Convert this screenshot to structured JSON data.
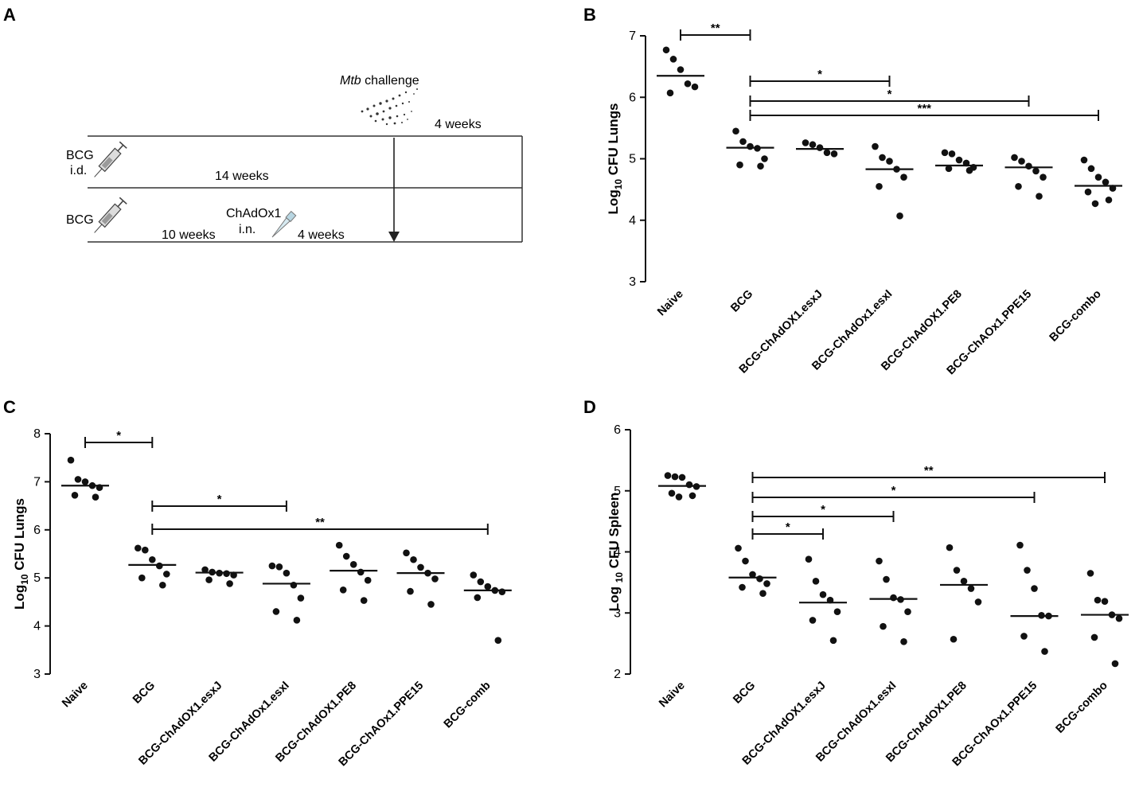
{
  "panel_letters": [
    "A",
    "B",
    "C",
    "D"
  ],
  "schematic": {
    "challenge_italic": "Mtb",
    "challenge_text": " challenge",
    "row1_vaccine": "BCG",
    "row1_route": "i.d.",
    "row1_duration": "14 weeks",
    "row2_vaccine": "BCG",
    "row2_duration": "10 weeks",
    "boost_name": "ChAdOx1",
    "boost_route": "i.n.",
    "boost_duration": "4 weeks",
    "post_challenge": "4 weeks"
  },
  "chart_data": [
    {
      "panel": "B",
      "type": "scatter",
      "ylabel_prefix": "Log",
      "ylabel_sub": "10",
      "ylabel_suffix": " CFU Lungs",
      "ylim": [
        3,
        7
      ],
      "yticks": [
        "3",
        "4",
        "5",
        "6",
        "7"
      ],
      "categories": [
        "Naive",
        "BCG",
        "BCG-ChAdOX1.esxJ",
        "BCG-ChAdOx1.esxI",
        "BCG-ChAdOX1.PE8",
        "BCG-ChAOx1.PPE15",
        "BCG-combo"
      ],
      "medians": [
        6.35,
        5.18,
        5.16,
        4.83,
        4.89,
        4.86,
        4.56
      ],
      "points": [
        [
          6.77,
          6.62,
          6.45,
          6.22,
          6.17,
          6.07
        ],
        [
          5.45,
          5.28,
          5.2,
          5.17,
          5.0,
          4.9,
          4.88
        ],
        [
          5.26,
          5.23,
          5.18,
          5.1,
          5.08
        ],
        [
          5.2,
          5.02,
          4.96,
          4.83,
          4.7,
          4.55,
          4.07
        ],
        [
          5.1,
          5.08,
          4.98,
          4.93,
          4.86,
          4.84,
          4.81
        ],
        [
          5.02,
          4.96,
          4.88,
          4.8,
          4.7,
          4.55,
          4.39
        ],
        [
          4.98,
          4.84,
          4.7,
          4.62,
          4.52,
          4.46,
          4.33,
          4.27
        ]
      ],
      "significance": [
        {
          "from": 0,
          "to": 1,
          "label": "**"
        },
        {
          "from": 1,
          "to": 3,
          "label": "*"
        },
        {
          "from": 1,
          "to": 5,
          "label": "*"
        },
        {
          "from": 1,
          "to": 6,
          "label": "***"
        }
      ]
    },
    {
      "panel": "C",
      "type": "scatter",
      "ylabel_prefix": "Log",
      "ylabel_sub": "10",
      "ylabel_suffix": " CFU Lungs",
      "ylim": [
        3,
        8
      ],
      "yticks": [
        "3",
        "4",
        "5",
        "6",
        "7",
        "8"
      ],
      "categories": [
        "Naive",
        "BCG",
        "BCG-ChAdOX1.esxJ",
        "BCG-ChAdOx1.esxI",
        "BCG-ChAdOX1.PE8",
        "BCG-ChAOx1.PPE15",
        "BCG-comb"
      ],
      "medians": [
        6.92,
        5.27,
        5.11,
        4.88,
        5.15,
        5.1,
        4.74
      ],
      "points": [
        [
          7.45,
          7.05,
          7.0,
          6.92,
          6.88,
          6.72,
          6.68
        ],
        [
          5.62,
          5.58,
          5.38,
          5.25,
          5.08,
          5.0,
          4.85
        ],
        [
          5.17,
          5.12,
          5.1,
          5.09,
          5.06,
          4.96,
          4.88
        ],
        [
          5.25,
          5.23,
          5.1,
          4.85,
          4.58,
          4.3,
          4.12
        ],
        [
          5.68,
          5.45,
          5.28,
          5.12,
          4.95,
          4.75,
          4.53
        ],
        [
          5.52,
          5.38,
          5.22,
          5.1,
          4.98,
          4.72,
          4.45
        ],
        [
          5.06,
          4.92,
          4.82,
          4.74,
          4.71,
          4.59,
          3.7
        ]
      ],
      "significance": [
        {
          "from": 0,
          "to": 1,
          "label": "*"
        },
        {
          "from": 1,
          "to": 3,
          "label": "*"
        },
        {
          "from": 1,
          "to": 6,
          "label": "**"
        }
      ]
    },
    {
      "panel": "D",
      "type": "scatter",
      "ylabel_prefix": "Log ",
      "ylabel_sub": "10",
      "ylabel_suffix": " CFU Spleen",
      "ylim": [
        2,
        6
      ],
      "yticks": [
        "2",
        "3",
        "4",
        "5",
        "6"
      ],
      "categories": [
        "Naive",
        "BCG",
        "BCG-ChAdOX1.esxJ",
        "BCG-ChAdOx1.esxI",
        "BCG-ChAdOX1.PE8",
        "BCG-ChAOx1.PPE15",
        "BCG-combo"
      ],
      "medians": [
        5.08,
        3.58,
        3.17,
        3.23,
        3.46,
        2.95,
        2.97
      ],
      "points": [
        [
          5.25,
          5.23,
          5.22,
          5.1,
          5.07,
          4.96,
          4.92,
          4.9
        ],
        [
          4.06,
          3.85,
          3.63,
          3.56,
          3.48,
          3.42,
          3.32
        ],
        [
          3.88,
          3.52,
          3.3,
          3.21,
          3.02,
          2.88,
          2.55
        ],
        [
          3.85,
          3.55,
          3.25,
          3.22,
          3.02,
          2.78,
          2.53
        ],
        [
          4.07,
          3.7,
          3.52,
          3.4,
          3.18,
          2.57
        ],
        [
          4.11,
          3.7,
          3.4,
          2.96,
          2.95,
          2.62,
          2.37
        ],
        [
          3.65,
          3.21,
          3.19,
          2.97,
          2.91,
          2.6,
          2.17
        ]
      ],
      "significance": [
        {
          "from": 1,
          "to": 2,
          "label": "*"
        },
        {
          "from": 1,
          "to": 3,
          "label": "*"
        },
        {
          "from": 1,
          "to": 5,
          "label": "*"
        },
        {
          "from": 1,
          "to": 6,
          "label": "**"
        }
      ]
    }
  ]
}
